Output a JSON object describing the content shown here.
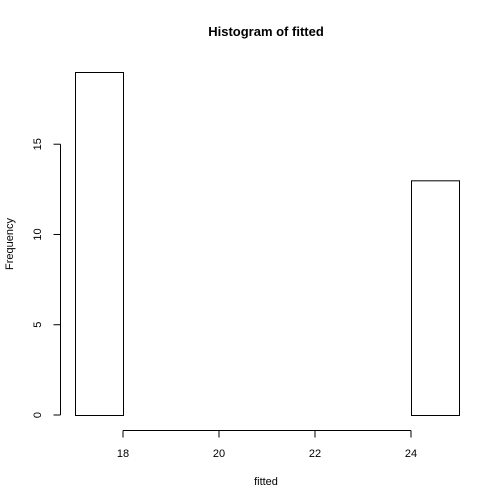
{
  "chart_data": {
    "type": "bar",
    "title": "Histogram of fitted",
    "xlabel": "fitted",
    "ylabel": "Frequency",
    "bins": [
      {
        "start": 17,
        "end": 18,
        "count": 19
      },
      {
        "start": 18,
        "end": 19,
        "count": 0
      },
      {
        "start": 19,
        "end": 20,
        "count": 0
      },
      {
        "start": 20,
        "end": 21,
        "count": 0
      },
      {
        "start": 21,
        "end": 22,
        "count": 0
      },
      {
        "start": 22,
        "end": 23,
        "count": 0
      },
      {
        "start": 23,
        "end": 24,
        "count": 0
      },
      {
        "start": 24,
        "end": 25,
        "count": 13
      }
    ],
    "xticks": [
      18,
      20,
      22,
      24
    ],
    "yticks": [
      0,
      5,
      10,
      15
    ],
    "xlim": [
      17,
      25
    ],
    "ylim": [
      0,
      19
    ],
    "colors": {
      "bar_fill": "#ffffff",
      "bar_stroke": "#000000"
    }
  }
}
